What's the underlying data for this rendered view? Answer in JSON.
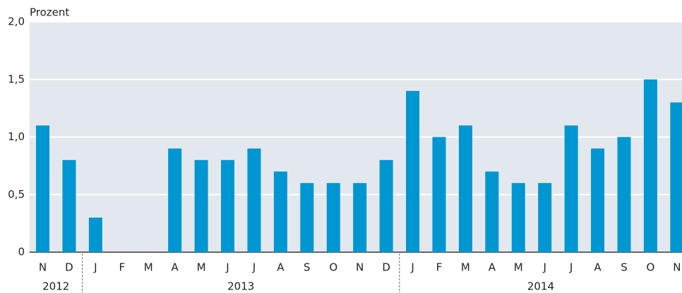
{
  "chart_data": {
    "type": "bar",
    "y_axis_label": "Prozent",
    "categories": [
      "N",
      "D",
      "J",
      "F",
      "M",
      "A",
      "M",
      "J",
      "J",
      "A",
      "S",
      "O",
      "N",
      "D",
      "J",
      "F",
      "M",
      "A",
      "M",
      "J",
      "J",
      "A",
      "S",
      "O",
      "N"
    ],
    "values": [
      1.1,
      0.8,
      0.3,
      0,
      0,
      0.9,
      0.8,
      0.8,
      0.9,
      0.7,
      0.6,
      0.6,
      0.6,
      0.8,
      1.4,
      1.0,
      1.1,
      0.7,
      0.6,
      0.6,
      1.1,
      0.9,
      1.0,
      1.5,
      1.3
    ],
    "year_groups": [
      {
        "label": "2012",
        "months": 2
      },
      {
        "label": "2013",
        "months": 12
      },
      {
        "label": "2014",
        "months": 11
      }
    ],
    "color": "#0096d1",
    "ylim": [
      0,
      2.0
    ],
    "yticks": [
      0,
      {
        "value": 0.5,
        "label": "0,5"
      },
      {
        "value": 1.0,
        "label": "1,0"
      },
      {
        "value": 1.5,
        "label": "1,5"
      },
      {
        "value": 2.0,
        "label": "2,0"
      }
    ],
    "grid": true
  }
}
